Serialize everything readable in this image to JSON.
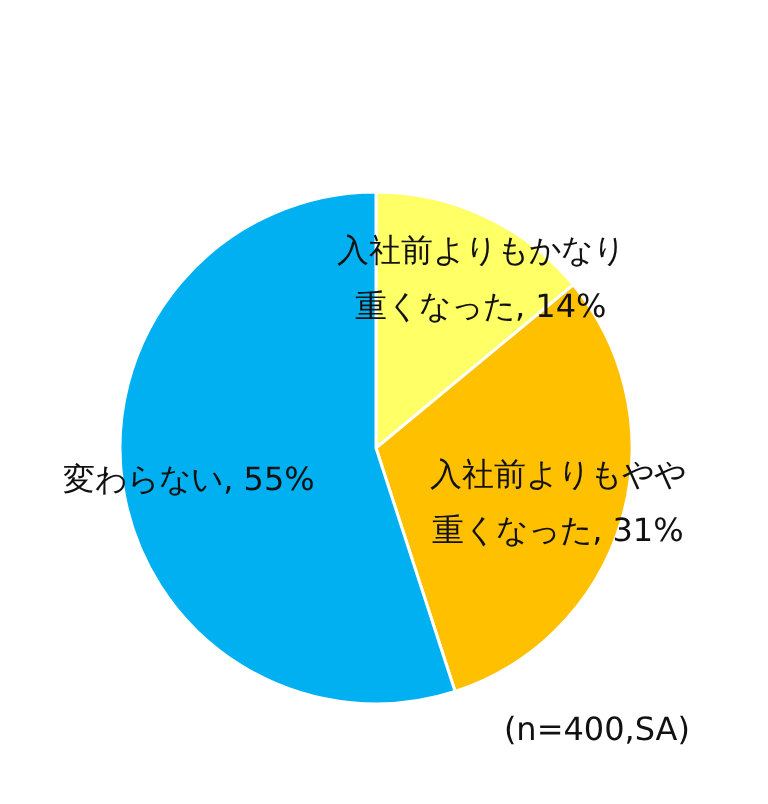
{
  "chart_data": {
    "type": "pie",
    "categories": [
      "入社前よりもかなり重くなった",
      "入社前よりもやや重くなった",
      "変わらない"
    ],
    "values": [
      14,
      31,
      55
    ],
    "colors": [
      "#ffff66",
      "#ffc000",
      "#00b0f0"
    ],
    "value_labels": [
      "14%",
      "31%",
      "55%"
    ],
    "annotations": [
      "(n=400,SA)"
    ]
  }
}
